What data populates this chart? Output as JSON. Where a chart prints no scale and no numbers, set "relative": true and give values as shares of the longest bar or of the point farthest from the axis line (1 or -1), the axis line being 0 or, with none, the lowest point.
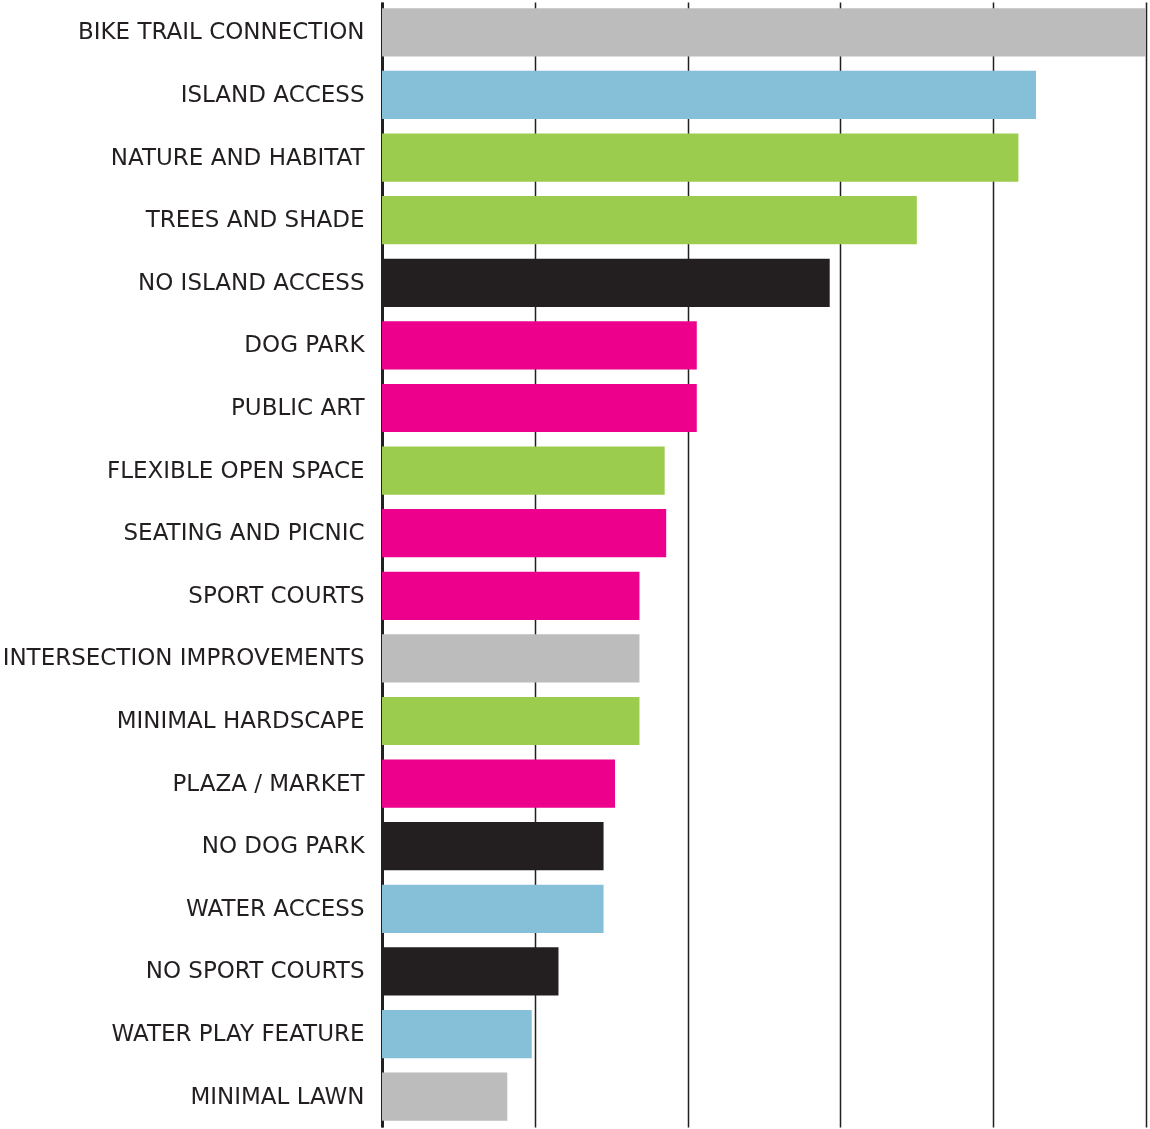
{
  "chart_data": {
    "type": "bar",
    "orientation": "horizontal",
    "relative": true,
    "grid": "x",
    "categories": [
      "BIKE TRAIL CONNECTION",
      "ISLAND ACCESS",
      "NATURE AND HABITAT",
      "TREES AND SHADE",
      "NO ISLAND ACCESS",
      "DOG PARK",
      "PUBLIC ART",
      "FLEXIBLE OPEN SPACE",
      "SEATING AND PICNIC",
      "SPORT COURTS",
      "INTERSECTION IMPROVEMENTS",
      "MINIMAL HARDSCAPE",
      "PLAZA / MARKET",
      "NO DOG PARK",
      "WATER ACCESS",
      "NO SPORT COURTS",
      "WATER PLAY FEATURE",
      "MINIMAL LAWN"
    ],
    "values": [
      1,
      0.856,
      0.833,
      0.7,
      0.586,
      0.412,
      0.412,
      0.37,
      0.372,
      0.337,
      0.337,
      0.337,
      0.305,
      0.29,
      0.29,
      0.231,
      0.196,
      0.164
    ],
    "colors": [
      "#bcbcbc",
      "#86bfd8",
      "#9ccc4e",
      "#9ccc4e",
      "#231f20",
      "#ec008c",
      "#ec008c",
      "#9ccc4e",
      "#ec008c",
      "#ec008c",
      "#bcbcbc",
      "#9ccc4e",
      "#ec008c",
      "#231f20",
      "#86bfd8",
      "#231f20",
      "#86bfd8",
      "#bcbcbc"
    ]
  }
}
